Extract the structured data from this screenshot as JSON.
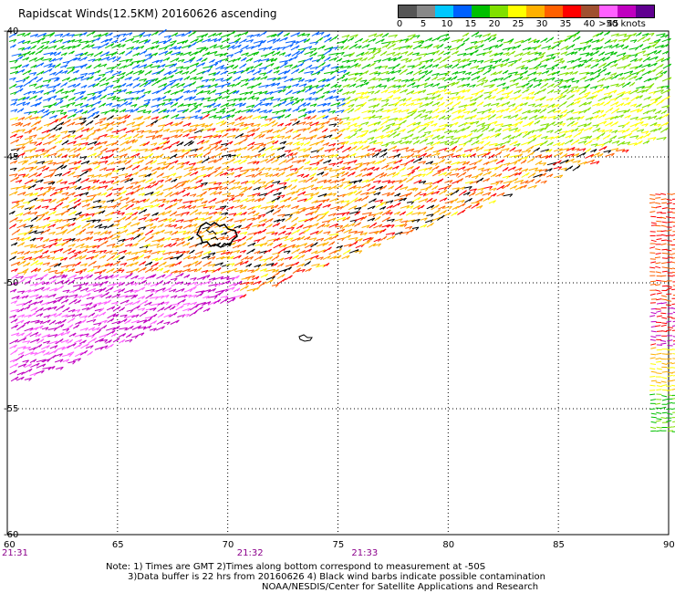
{
  "title": "Rapidscat Winds(12.5KM) 20160626 ascending",
  "legend": {
    "colors": [
      "#555555",
      "#888888",
      "#00c8ff",
      "#0060ff",
      "#00c000",
      "#80e000",
      "#ffff00",
      "#ffb000",
      "#ff6000",
      "#ff0000",
      "#a05030",
      "#ff60ff",
      "#c000c0",
      "#600090"
    ],
    "labels": [
      "0",
      "5",
      "10",
      "15",
      "20",
      "25",
      "30",
      "35",
      "40",
      "45",
      ">50 knots"
    ]
  },
  "axes": {
    "lon_ticks": [
      "60",
      "65",
      "70",
      "75",
      "80",
      "85",
      "90"
    ],
    "lat_ticks": [
      "-40",
      "-45",
      "-50",
      "-55",
      "-60"
    ],
    "times": [
      {
        "label": "21:31",
        "lon": 60
      },
      {
        "label": "21:32",
        "lon": 70.5
      },
      {
        "label": "21:33",
        "lon": 75.7
      }
    ],
    "time_color": "#8b008b",
    "lon_range": [
      60,
      90
    ],
    "lat_range": [
      -40,
      -60
    ]
  },
  "notes": {
    "line1": "Note: 1) Times are GMT 2)Times along bottom correspond to measurement at -50S",
    "line2": "3)Data buffer is 22 hrs from 20160626 4) Black wind barbs indicate possible contamination",
    "line3": "NOAA/NESDIS/Center for Satellite Applications and Research"
  }
}
